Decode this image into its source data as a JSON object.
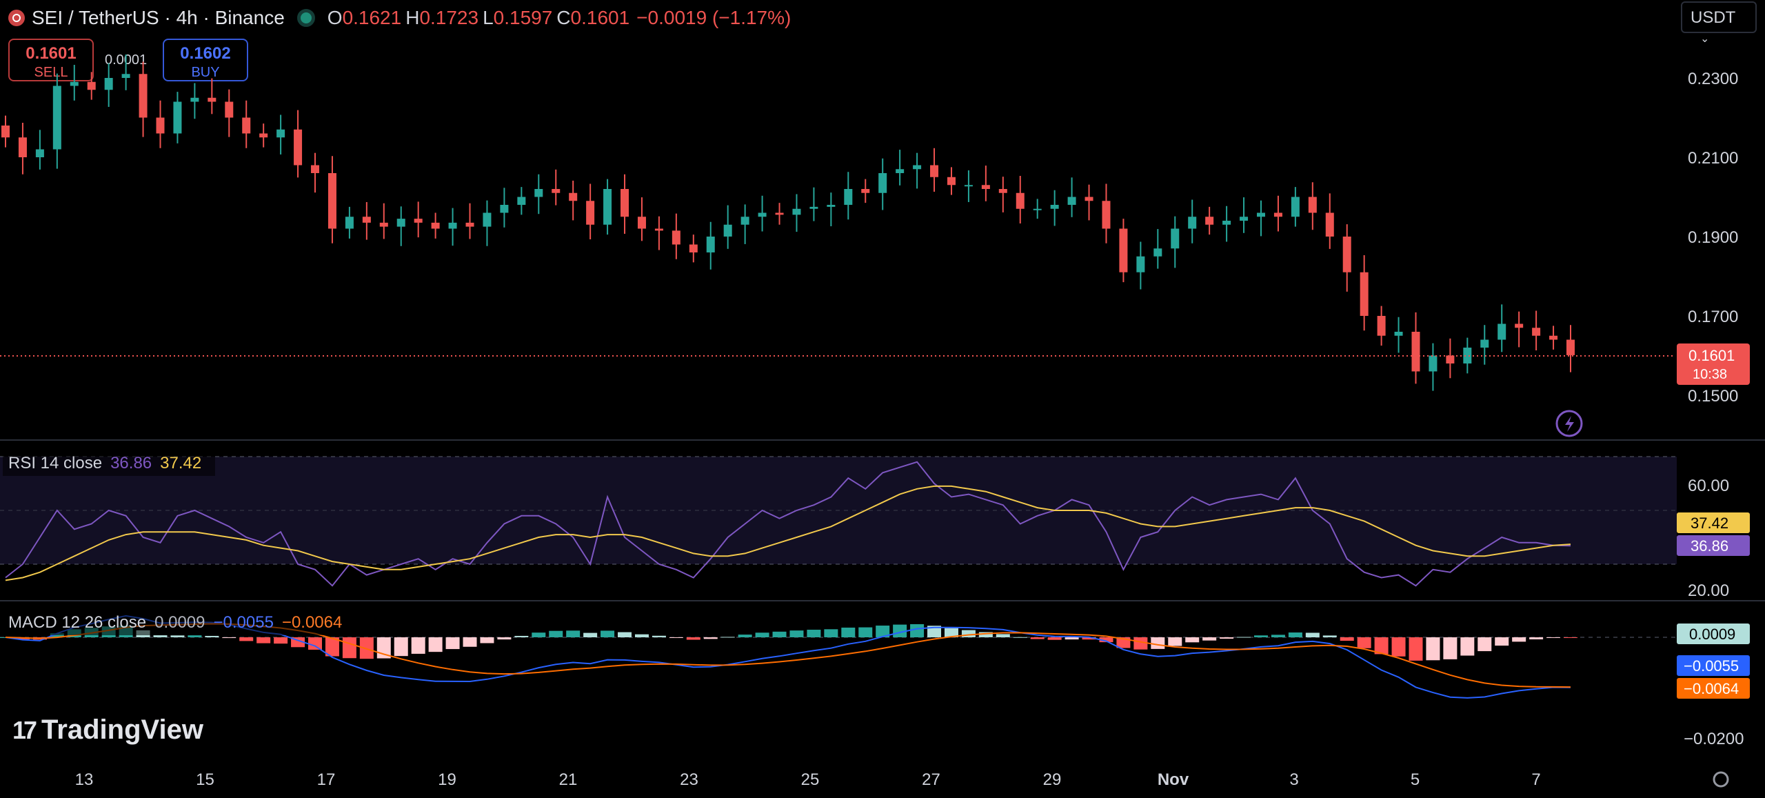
{
  "header": {
    "symbol": "SEI / TetherUS · 4h · Binance",
    "open_label": "O",
    "open": "0.1621",
    "high_label": "H",
    "high": "0.1723",
    "low_label": "L",
    "low": "0.1597",
    "close_label": "C",
    "close": "0.1601",
    "change": "−0.0019 (−1.17%)"
  },
  "trade": {
    "sell_price": "0.1601",
    "sell_label": "SELL",
    "buy_price": "0.1602",
    "buy_label": "BUY",
    "spread": "0.0001"
  },
  "currency_select": "USDT",
  "price_axis": {
    "ticks": [
      "0.2300",
      "0.2100",
      "0.1900",
      "0.1700",
      "0.1500"
    ],
    "last_price": "0.1601",
    "countdown": "10:38"
  },
  "rsi": {
    "label": "RSI 14 close",
    "value": "36.86",
    "ma_value": "37.42",
    "ticks": [
      "60.00",
      "20.00"
    ]
  },
  "macd": {
    "label": "MACD 12 26 close",
    "hist": "0.0009",
    "macd": "−0.0055",
    "signal": "−0.0064",
    "tick": "−0.0200"
  },
  "time_axis": [
    "13",
    "15",
    "17",
    "19",
    "21",
    "23",
    "25",
    "27",
    "29",
    "Nov",
    "3",
    "5",
    "7"
  ],
  "branding": "TradingView",
  "colors": {
    "up": "#26a69a",
    "down": "#ef5350",
    "rsi": "#7e57c2",
    "rsi_ma": "#f2c94c",
    "macd": "#2962ff",
    "signal": "#ff6d00"
  },
  "chart_data": {
    "type": "candlestick",
    "interval": "4h",
    "close_series": [
      0.215,
      0.21,
      0.212,
      0.228,
      0.229,
      0.227,
      0.23,
      0.231,
      0.22,
      0.216,
      0.224,
      0.225,
      0.224,
      0.22,
      0.216,
      0.215,
      0.217,
      0.208,
      0.206,
      0.192,
      0.195,
      0.1935,
      0.1925,
      0.1945,
      0.1935,
      0.192,
      0.1935,
      0.1925,
      0.196,
      0.198,
      0.2,
      0.202,
      0.201,
      0.199,
      0.193,
      0.202,
      0.195,
      0.192,
      0.1915,
      0.188,
      0.186,
      0.19,
      0.193,
      0.195,
      0.196,
      0.1955,
      0.197,
      0.1975,
      0.198,
      0.202,
      0.201,
      0.206,
      0.207,
      0.208,
      0.205,
      0.203,
      0.203,
      0.202,
      0.201,
      0.197,
      0.197,
      0.198,
      0.2,
      0.199,
      0.192,
      0.181,
      0.185,
      0.187,
      0.192,
      0.195,
      0.193,
      0.194,
      0.195,
      0.196,
      0.195,
      0.2,
      0.196,
      0.19,
      0.181,
      0.17,
      0.165,
      0.166,
      0.156,
      0.16,
      0.158,
      0.162,
      0.164,
      0.168,
      0.167,
      0.165,
      0.164,
      0.1601
    ],
    "first_close": 0.215,
    "last_close": 0.1601,
    "rsi_series": [
      25,
      30,
      40,
      50,
      43,
      45,
      50,
      48,
      40,
      38,
      48,
      50,
      47,
      44,
      40,
      38,
      42,
      30,
      28,
      22,
      30,
      26,
      28,
      30,
      32,
      28,
      32,
      30,
      38,
      45,
      48,
      48,
      45,
      40,
      30,
      55,
      40,
      35,
      30,
      28,
      25,
      32,
      40,
      45,
      50,
      47,
      50,
      52,
      55,
      62,
      58,
      64,
      66,
      68,
      60,
      55,
      56,
      54,
      52,
      45,
      48,
      50,
      54,
      52,
      42,
      28,
      40,
      42,
      50,
      55,
      52,
      54,
      55,
      56,
      54,
      62,
      50,
      45,
      32,
      27,
      25,
      26,
      22,
      28,
      27,
      32,
      36,
      40,
      38,
      38,
      37,
      36.86
    ],
    "rsi_ma_series": [
      24,
      25,
      27,
      30,
      33,
      36,
      39,
      41,
      42,
      42,
      42,
      42,
      41,
      40,
      39,
      37,
      36,
      35,
      33,
      31,
      30,
      29,
      28,
      28,
      29,
      30,
      31,
      32,
      34,
      36,
      38,
      40,
      41,
      41,
      40,
      41,
      41,
      40,
      38,
      36,
      34,
      33,
      33,
      34,
      36,
      38,
      40,
      42,
      44,
      47,
      50,
      53,
      56,
      58,
      59,
      59,
      58,
      57,
      55,
      53,
      51,
      50,
      50,
      50,
      49,
      47,
      45,
      44,
      44,
      45,
      46,
      47,
      48,
      49,
      50,
      51,
      51,
      50,
      48,
      46,
      43,
      40,
      37,
      35,
      34,
      33,
      33,
      34,
      35,
      36,
      37,
      37.42
    ],
    "rsi_range": [
      0,
      100
    ],
    "rsi_bands": [
      70,
      30
    ],
    "macd_hist": "0.0009",
    "macd_value": "−0.0055",
    "signal_value": "−0.0064",
    "x_tick_labels": [
      "13",
      "15",
      "17",
      "19",
      "21",
      "23",
      "25",
      "27",
      "29",
      "Nov",
      "3",
      "5",
      "7"
    ]
  }
}
